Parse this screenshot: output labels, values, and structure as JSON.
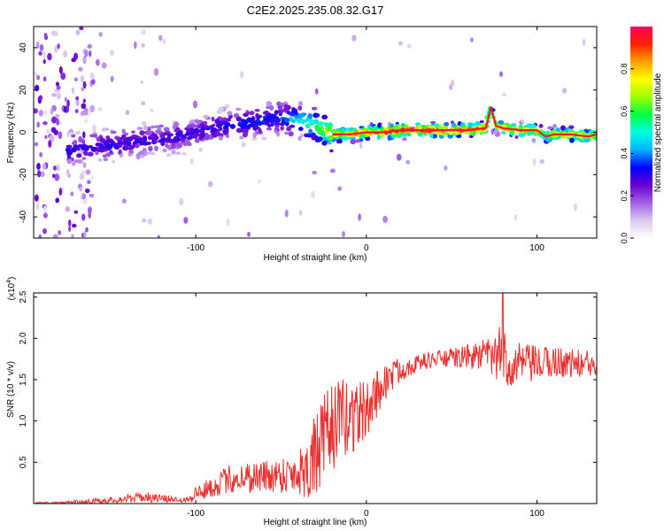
{
  "title": "C2E2.2025.235.08.32.G17",
  "chart_data": [
    {
      "type": "heatmap",
      "name": "spectrogram",
      "title": "C2E2.2025.235.08.32.G17",
      "xlabel": "Height of straight line (km)",
      "ylabel": "Frequency (Hz)",
      "xlim": [
        -195,
        135
      ],
      "ylim": [
        -50,
        50
      ],
      "x_ticks": [
        -100,
        0,
        100
      ],
      "x_tick_labels": [
        "-100",
        "0",
        "100"
      ],
      "y_ticks": [
        -40,
        -20,
        0,
        20,
        40
      ],
      "y_tick_labels": [
        "-40",
        "-20",
        "0",
        "20",
        "40"
      ],
      "colorbar": {
        "label": "Normalized spectral amplitude",
        "range": [
          0,
          1
        ],
        "ticks": [
          0.0,
          0.2,
          0.4,
          0.6,
          0.8
        ],
        "tick_labels": [
          "0.0",
          "0.2",
          "0.4",
          "0.6",
          "0.8"
        ],
        "colors": [
          "#ffffff",
          "#dcc8f0",
          "#a060e8",
          "#6a00d0",
          "#0000ff",
          "#00b4ff",
          "#00ffe0",
          "#00ff40",
          "#a0ff00",
          "#ffff00",
          "#ffa000",
          "#ff2000",
          "#ff0060"
        ]
      },
      "ridge": {
        "x": [
          -195,
          -175,
          -160,
          -150,
          -140,
          -130,
          -120,
          -110,
          -100,
          -90,
          -80,
          -70,
          -60,
          -50,
          -40,
          -30,
          -20,
          -10,
          0,
          10,
          20,
          30,
          40,
          50,
          60,
          70,
          73,
          76,
          80,
          90,
          100,
          105,
          110,
          120,
          130,
          135
        ],
        "freq_hz": [
          -12,
          -9,
          -7,
          -6,
          -5,
          -4,
          -3,
          -2,
          0,
          2,
          3,
          4,
          6,
          7,
          6,
          3,
          -1,
          -1,
          0,
          0,
          1,
          1,
          1,
          1,
          1,
          2,
          12,
          3,
          2,
          1,
          1,
          -2,
          -1,
          -1,
          -2,
          -1
        ],
        "amplitude": [
          0.35,
          0.3,
          0.3,
          0.3,
          0.3,
          0.3,
          0.3,
          0.3,
          0.3,
          0.3,
          0.35,
          0.35,
          0.35,
          0.35,
          0.5,
          0.6,
          0.8,
          0.85,
          0.9,
          0.95,
          0.95,
          0.95,
          0.95,
          0.95,
          0.9,
          0.9,
          0.6,
          0.7,
          0.85,
          0.85,
          0.8,
          0.6,
          0.8,
          0.8,
          0.75,
          0.7
        ]
      }
    },
    {
      "type": "line",
      "name": "snr",
      "xlabel": "Height of straight line (km)",
      "ylabel": "SNR (10 * v/v)",
      "yscale_label": "(x10",
      "yscale_exponent": "4",
      "xlim": [
        -195,
        135
      ],
      "ylim": [
        0,
        2.55
      ],
      "x_ticks": [
        -100,
        0,
        100
      ],
      "x_tick_labels": [
        "-100",
        "0",
        "100"
      ],
      "y_ticks": [
        0.5,
        1.0,
        1.5,
        2.0,
        2.5
      ],
      "y_tick_labels": [
        "0.5",
        "1.0",
        "1.5",
        "2.0",
        "2.5"
      ],
      "color": "#e8312f",
      "series": [
        {
          "name": "SNR",
          "x": [
            -195,
            -180,
            -170,
            -160,
            -150,
            -140,
            -130,
            -120,
            -110,
            -105,
            -100,
            -90,
            -80,
            -70,
            -60,
            -50,
            -40,
            -35,
            -30,
            -25,
            -20,
            -15,
            -10,
            -5,
            0,
            5,
            10,
            15,
            20,
            30,
            40,
            50,
            60,
            70,
            75,
            80,
            85,
            90,
            100,
            110,
            120,
            130,
            135
          ],
          "mean": [
            0.01,
            0.01,
            0.02,
            0.03,
            0.04,
            0.06,
            0.08,
            0.06,
            0.05,
            0.05,
            0.12,
            0.2,
            0.3,
            0.32,
            0.33,
            0.35,
            0.38,
            0.45,
            0.55,
            0.75,
            0.95,
            1.0,
            1.05,
            1.1,
            1.1,
            1.3,
            1.45,
            1.55,
            1.62,
            1.7,
            1.75,
            1.76,
            1.78,
            1.8,
            1.75,
            1.85,
            1.65,
            1.7,
            1.68,
            1.72,
            1.7,
            1.68,
            1.68
          ],
          "amplitude": [
            0.01,
            0.01,
            0.02,
            0.03,
            0.04,
            0.05,
            0.06,
            0.05,
            0.03,
            0.05,
            0.1,
            0.12,
            0.18,
            0.2,
            0.2,
            0.22,
            0.28,
            0.4,
            0.55,
            0.55,
            0.55,
            0.5,
            0.5,
            0.45,
            0.35,
            0.3,
            0.25,
            0.2,
            0.15,
            0.1,
            0.1,
            0.12,
            0.15,
            0.2,
            0.3,
            0.35,
            0.3,
            0.25,
            0.22,
            0.2,
            0.18,
            0.18,
            0.18
          ],
          "peak": {
            "x": 80,
            "y": 2.55
          }
        }
      ]
    }
  ]
}
